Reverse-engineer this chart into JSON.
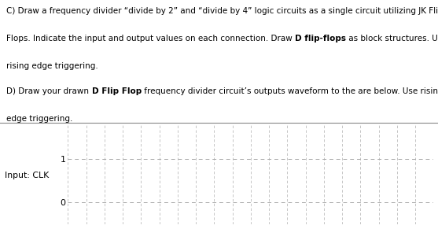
{
  "line1": "C) Draw a frequency divider “divide by 2” and “divide by 4” logic circuits as a single circuit utilizing JK Flip-",
  "line2_pre": "Flops. Indicate the input and output values on each connection. Draw ",
  "line2_bold": "D flip-flops",
  "line2_post": " as block structures. Use",
  "line3": "rising edge triggering.",
  "line4_pre": "D) Draw your drawn ",
  "line4_bold": "D Flip Flop",
  "line4_post": " frequency divider circuit’s outputs waveform to the are below. Use rising",
  "line5": "edge triggering.",
  "num_vertical_lines": 20,
  "dashed_color": "#aaaaaa",
  "grid_color": "#bbbbbb",
  "background_color": "#ffffff",
  "text_color": "#000000",
  "fontsize_main": 7.5,
  "waveform_ylim": [
    -0.5,
    1.8
  ],
  "ylabel": "Input: CLK",
  "separator_color": "#888888"
}
